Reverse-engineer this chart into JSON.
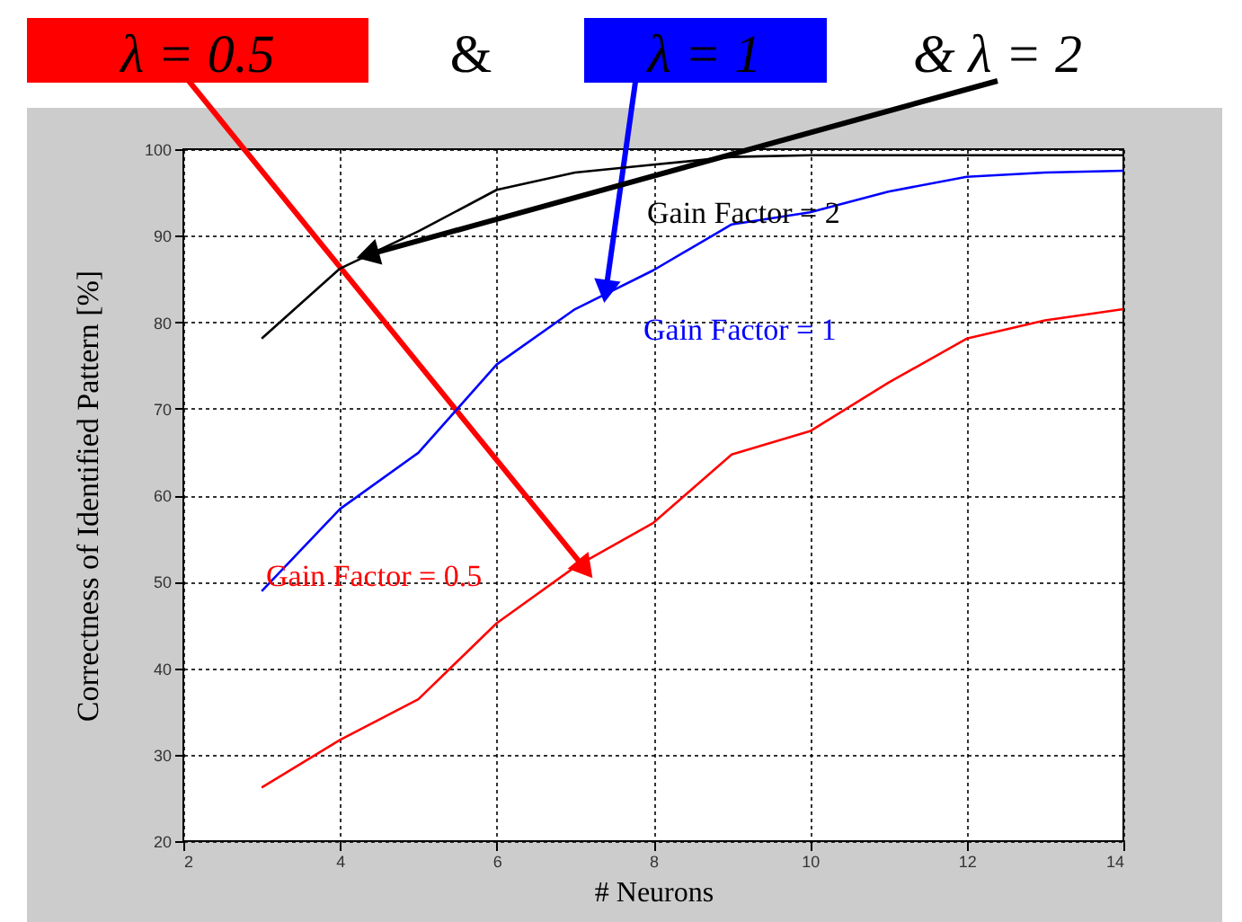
{
  "chart_data": {
    "type": "line",
    "xlabel": "# Neurons",
    "ylabel": "Correctness of Identified Pattern [%]",
    "x": [
      3,
      4,
      5,
      6,
      7,
      8,
      9,
      10,
      11,
      12,
      13,
      14
    ],
    "series": [
      {
        "color": "#ff0000",
        "values": [
          26.2,
          31.7,
          36.4,
          45.2,
          51.7,
          56.8,
          64.7,
          67.4,
          73.0,
          78.1,
          80.2,
          81.5
        ]
      },
      {
        "color": "#0000ff",
        "values": [
          48.9,
          58.4,
          64.9,
          75.1,
          81.5,
          86.0,
          91.3,
          92.7,
          95.1,
          96.8,
          97.3,
          97.5
        ]
      },
      {
        "color": "#000000",
        "values": [
          78.1,
          86.2,
          90.5,
          95.3,
          97.3,
          98.2,
          99.1,
          99.3,
          99.3,
          99.3,
          99.3,
          99.3
        ]
      }
    ],
    "xlim": [
      2,
      14
    ],
    "ylim": [
      20,
      100
    ],
    "xticks": [
      2,
      4,
      6,
      8,
      10,
      12,
      14
    ],
    "yticks": [
      20,
      30,
      40,
      50,
      60,
      70,
      80,
      90,
      100
    ],
    "grid": true,
    "marker": "none",
    "line_style": "solid",
    "annotations": [
      {
        "text": "λ = 0.5",
        "x": 7.1,
        "y": 51.8
      },
      "&",
      {
        "text": "λ = 1",
        "x": 7.4,
        "y": 84
      },
      {
        "text": "& λ = 2",
        "x": 4.4,
        "y": 87.9
      },
      "Gain Factor = 0.5",
      "Gain Factor = 1",
      "Gain Factor = 2"
    ]
  }
}
